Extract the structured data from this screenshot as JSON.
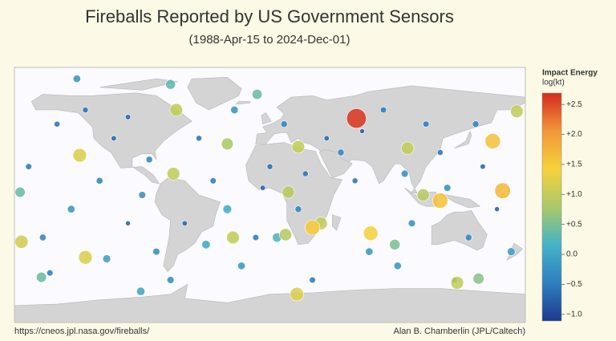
{
  "chart_data": {
    "type": "map",
    "title": "Fireballs Reported by US Government Sensors",
    "subtitle": "(1988-Apr-15 to 2024-Dec-01)",
    "colorbar_title": "Impact Energy",
    "colorbar_unit": "log(kt)",
    "source": "https://cneos.jpl.nasa.gov/fireballs/",
    "credit": "Alan B. Chamberlin (JPL/Caltech)",
    "xlim": [
      -180,
      180
    ],
    "ylim": [
      -90,
      90
    ],
    "clim": [
      -1.11,
      2.69
    ],
    "colorscale": [
      "#1d3a8c",
      "#2f7fc1",
      "#45b3c6",
      "#a9c96a",
      "#f6d13b",
      "#f2973a",
      "#d42a1f"
    ],
    "cticks": [
      {
        "value": 2.5,
        "label": "+2.5"
      },
      {
        "value": 2,
        "label": "+2.0"
      },
      {
        "value": 1.5,
        "label": "+1.5"
      },
      {
        "value": 1,
        "label": "+1.0"
      },
      {
        "value": 0.5,
        "label": "+0.5"
      },
      {
        "value": 0,
        "label": "0.0"
      },
      {
        "value": -0.5,
        "label": "−0.5"
      },
      {
        "value": -1,
        "label": "−1.0"
      }
    ],
    "lon": [
      61,
      -66,
      174,
      157,
      -134,
      -175,
      -130,
      -26,
      11,
      30,
      36,
      71,
      19,
      132,
      164,
      120,
      108,
      -68,
      20,
      97,
      -30,
      -9,
      -70,
      13,
      88,
      -136,
      -176,
      -161,
      147,
      -91,
      -150,
      -120,
      -100,
      -80,
      -60,
      -40,
      -20,
      0,
      20,
      40,
      80,
      100,
      120,
      140,
      160,
      -170,
      -140,
      -110,
      -90,
      -50,
      -30,
      -10,
      10,
      60,
      90,
      110,
      150,
      170,
      -160,
      -130,
      -70,
      30,
      70,
      130,
      -100,
      50,
      -25,
      5,
      125,
      -155,
      -5,
      65,
      95,
      -115,
      145,
      -45,
      25,
      -85
    ],
    "lat": [
      54,
      60,
      59,
      38,
      28,
      -33,
      -44,
      -30,
      -28,
      -23,
      -20,
      -27,
      -70,
      -62,
      3,
      -4,
      0,
      15,
      34,
      33,
      36,
      71,
      78,
      2,
      -35,
      82,
      2,
      -58,
      -59,
      -68,
      50,
      10,
      -20,
      -40,
      -20,
      10,
      -50,
      20,
      -10,
      40,
      60,
      -20,
      30,
      -30,
      -10,
      20,
      -10,
      40,
      0,
      40,
      -10,
      -30,
      50,
      10,
      -50,
      50,
      20,
      -40,
      -30,
      60,
      -60,
      -60,
      -40,
      -60,
      55,
      30,
      60,
      -30,
      5,
      -55,
      5,
      45,
      15,
      -45,
      50,
      -35,
      15,
      25
    ],
    "energy": [
      2.6,
      1.0,
      1.0,
      1.6,
      1.2,
      1.1,
      1.2,
      1.0,
      0.9,
      1.5,
      1.0,
      1.4,
      1.2,
      1.0,
      1.7,
      1.6,
      0.9,
      1.0,
      1.0,
      1.0,
      0.8,
      0.4,
      0.3,
      0.9,
      0.5,
      -0.2,
      0.4,
      0.4,
      0.6,
      0.0,
      -0.6,
      -0.4,
      -0.8,
      -0.3,
      -0.7,
      -0.5,
      -0.2,
      -0.6,
      -0.4,
      -0.7,
      -0.5,
      -0.3,
      -0.6,
      -0.4,
      -0.8,
      -0.5,
      -0.2,
      -0.7,
      -0.3,
      -0.6,
      0.1,
      -0.5,
      -0.4,
      -0.6,
      -0.2,
      -0.5,
      -0.7,
      -0.1,
      -0.4,
      -0.6,
      -0.3,
      -0.5,
      -0.2,
      -0.6,
      -0.7,
      -0.4,
      -0.2,
      0.2,
      -0.3,
      -0.5,
      -0.7,
      -0.8,
      -0.3,
      -0.1,
      -0.4,
      0.0,
      -0.6,
      -0.4
    ]
  }
}
